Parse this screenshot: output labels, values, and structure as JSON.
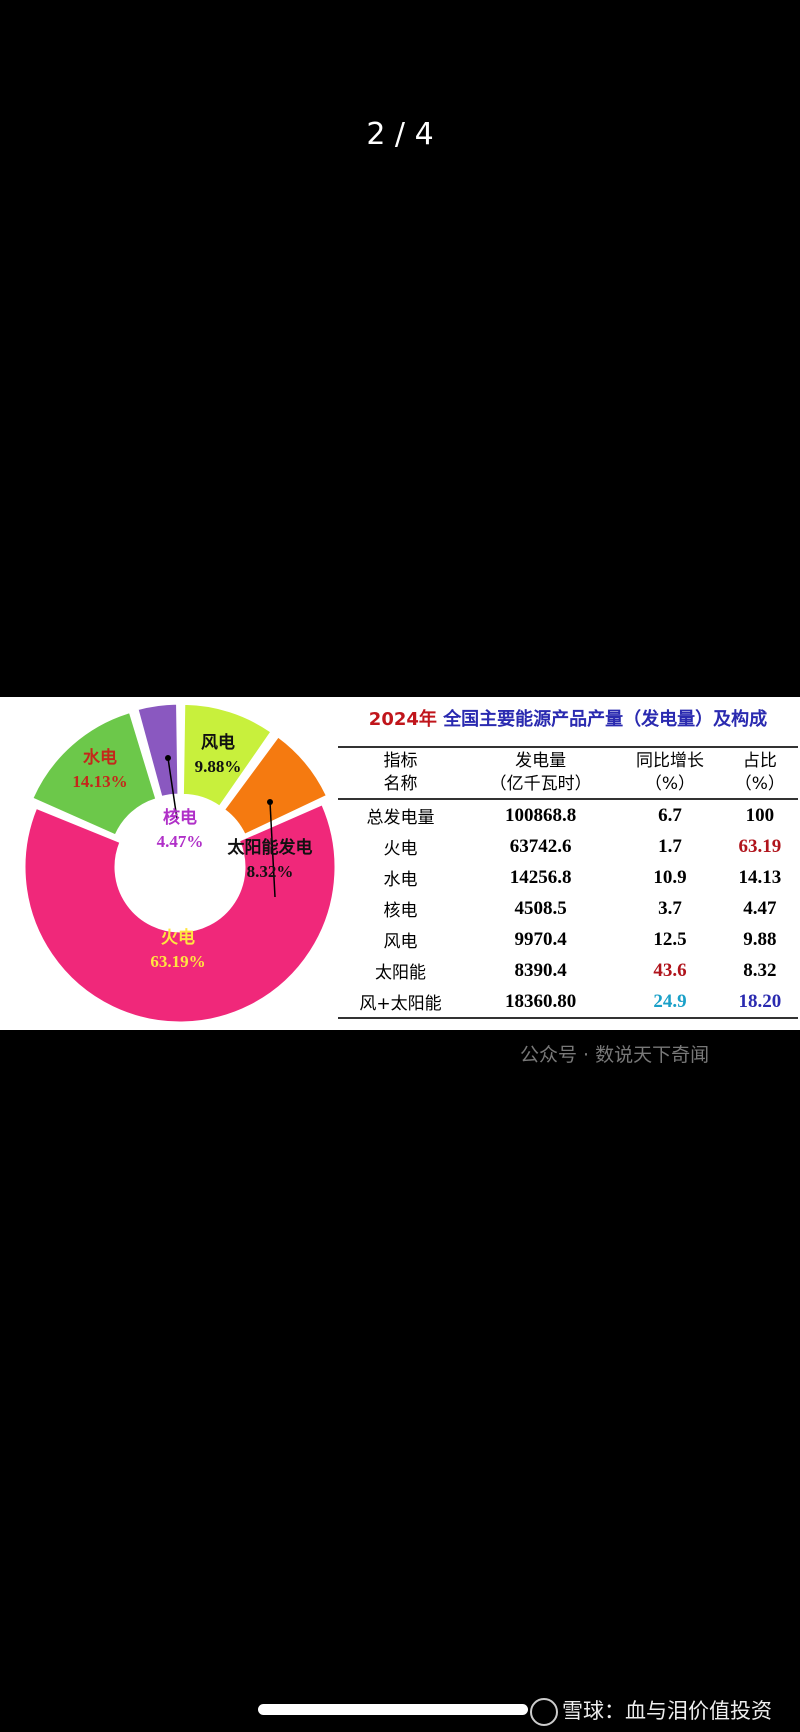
{
  "viewer": {
    "page_counter": "2 / 4"
  },
  "chart_data": {
    "type": "pie",
    "donut": true,
    "title_year": "2024年",
    "title": "全国主要能源产品产量（发电量）及构成",
    "slices": [
      {
        "name": "风电",
        "value": 9.88,
        "label": "9.88%",
        "color": "#c8f03c",
        "text_color": "#111"
      },
      {
        "name": "太阳能发电",
        "value": 8.32,
        "label": "8.32%",
        "color": "#f57a10",
        "text_color": "#111"
      },
      {
        "name": "火电",
        "value": 63.19,
        "label": "63.19%",
        "color": "#f0287a",
        "text_color": "#ffe640"
      },
      {
        "name": "水电",
        "value": 14.13,
        "label": "14.13%",
        "color": "#6cc84a",
        "text_color": "#c4281a"
      },
      {
        "name": "核电",
        "value": 4.47,
        "label": "4.47%",
        "color": "#8a58c0",
        "text_color": "#b030c8"
      }
    ],
    "table": {
      "headers": [
        [
          "指标",
          "名称"
        ],
        [
          "发电量",
          "（亿千瓦时）"
        ],
        [
          "同比增长",
          "（%）"
        ],
        [
          "占比",
          "（%）"
        ]
      ],
      "rows": [
        [
          "总发电量",
          "100868.8",
          "6.7",
          "100"
        ],
        [
          "火电",
          "63742.6",
          "1.7",
          "63.19"
        ],
        [
          "水电",
          "14256.8",
          "10.9",
          "14.13"
        ],
        [
          "核电",
          "4508.5",
          "3.7",
          "4.47"
        ],
        [
          "风电",
          "9970.4",
          "12.5",
          "9.88"
        ],
        [
          "太阳能",
          "8390.4",
          "43.6",
          "8.32"
        ],
        [
          "风+太阳能",
          "18360.80",
          "24.9",
          "18.20"
        ]
      ],
      "highlight_colors": {
        "red": "#b0141c",
        "cyan": "#1aa0c8",
        "blue": "#2a2ab0"
      }
    }
  },
  "watermark": "公众号 · 数说天下奇闻",
  "footer": {
    "text": "雪球：血与泪价值投资"
  }
}
